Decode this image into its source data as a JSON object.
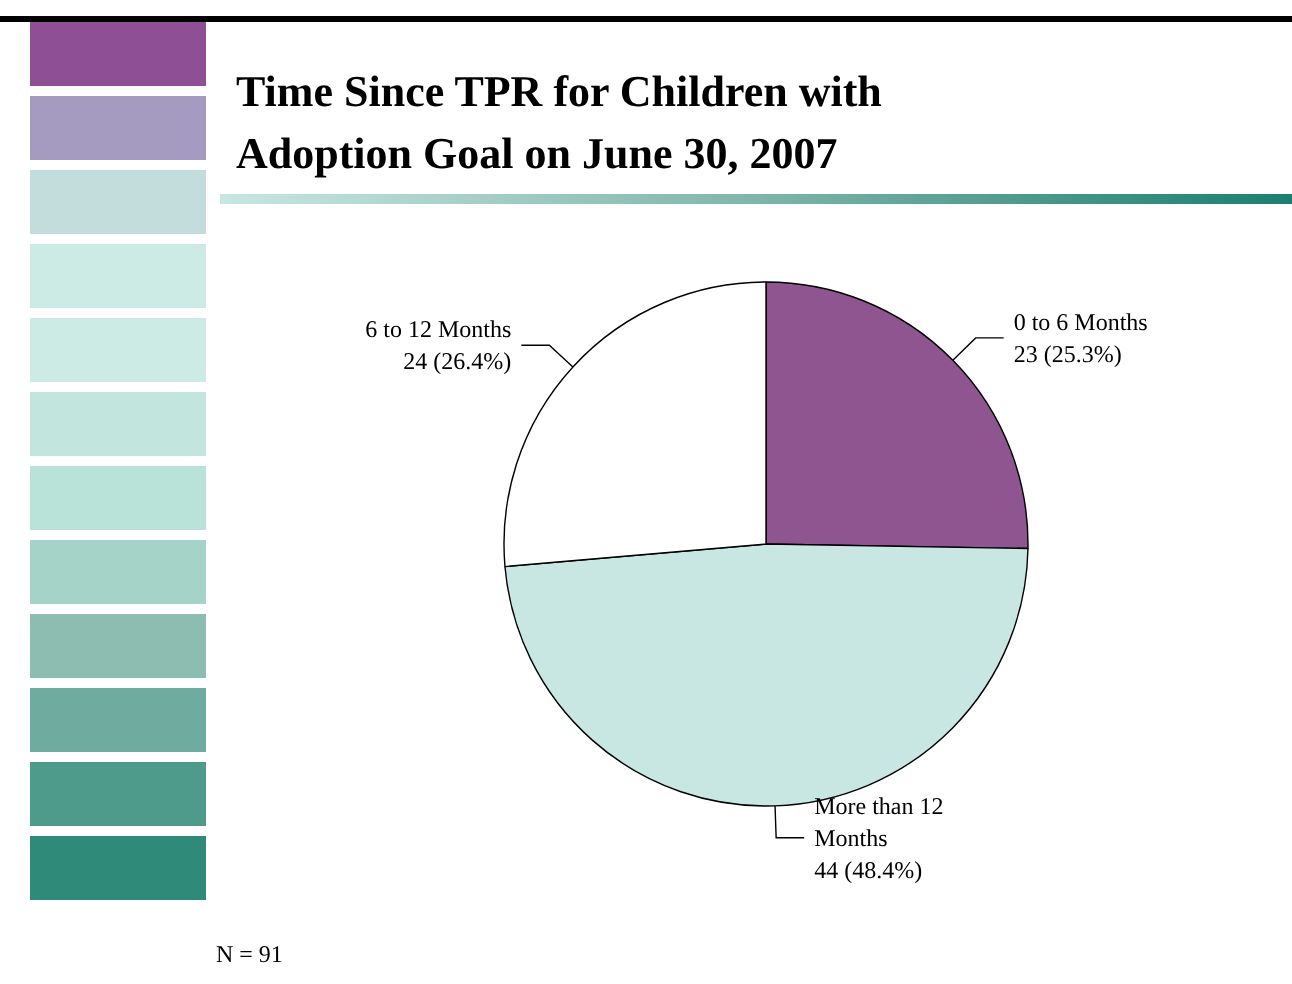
{
  "chart_data": {
    "type": "pie",
    "title": "Time Since TPR for Children with Adoption Goal on June 30, 2007",
    "categories": [
      "0 to 6 Months",
      "More than 12 Months",
      "6 to 12 Months"
    ],
    "values": [
      23,
      44,
      24
    ],
    "colors": [
      "#8e5590",
      "#c8e6e2",
      "#ffffff"
    ],
    "value_labels": [
      "23 (25.3%)",
      "44 (48.4%)",
      "24 (26.4%)"
    ],
    "annotations": [
      "N = 91"
    ],
    "legend": false
  }
}
